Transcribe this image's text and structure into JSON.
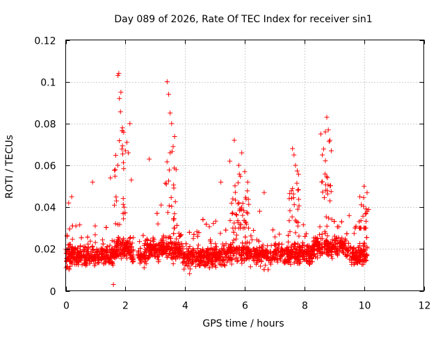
{
  "chart_data": {
    "type": "scatter",
    "title": "Day 089 of 2026, Rate Of TEC Index for receiver sin1",
    "xlabel": "GPS time / hours",
    "ylabel": "ROTI / TECUs",
    "xlim": [
      0,
      12
    ],
    "ylim": [
      0,
      0.12
    ],
    "xticks": [
      0,
      2,
      4,
      6,
      8,
      10,
      12
    ],
    "xtick_labels": [
      "0",
      "2",
      "4",
      "6",
      "8",
      "10",
      "12"
    ],
    "yticks": [
      0,
      0.02,
      0.04,
      0.06,
      0.08,
      0.1,
      0.12
    ],
    "ytick_labels": [
      "0",
      "0.02",
      "0.04",
      "0.06",
      "0.08",
      "0.1",
      "0.12"
    ],
    "grid": true,
    "marker": "plus",
    "color": "#ff0000",
    "series": [
      {
        "name": "sin1",
        "note": "dense band of points roughly 0.005-0.035 TECU from 0 to 10.1 h, with a small gap near 2.3-2.4 h; representative peak points listed",
        "x": [
          0.1,
          0.2,
          0.9,
          1.5,
          1.6,
          1.75,
          1.78,
          1.8,
          1.85,
          1.9,
          2.0,
          2.05,
          2.1,
          2.15,
          2.2,
          2.8,
          3.4,
          3.45,
          3.5,
          3.55,
          3.6,
          3.7,
          5.2,
          5.5,
          5.65,
          5.8,
          5.9,
          6.0,
          6.1,
          6.65,
          7.6,
          7.65,
          7.7,
          8.55,
          8.6,
          8.7,
          8.75,
          8.8,
          8.85,
          8.9,
          10.0,
          10.1,
          0.05,
          1.7,
          3.2,
          4.6,
          6.5,
          9.5
        ],
        "y": [
          0.042,
          0.045,
          0.052,
          0.054,
          0.003,
          0.103,
          0.104,
          0.092,
          0.095,
          0.078,
          0.067,
          0.071,
          0.066,
          0.08,
          0.053,
          0.063,
          0.1,
          0.094,
          0.085,
          0.08,
          0.069,
          0.058,
          0.052,
          0.062,
          0.072,
          0.06,
          0.066,
          0.057,
          0.052,
          0.047,
          0.068,
          0.065,
          0.06,
          0.075,
          0.065,
          0.076,
          0.083,
          0.077,
          0.072,
          0.067,
          0.05,
          0.047,
          0.026,
          0.043,
          0.041,
          0.034,
          0.038,
          0.036
        ]
      }
    ]
  }
}
